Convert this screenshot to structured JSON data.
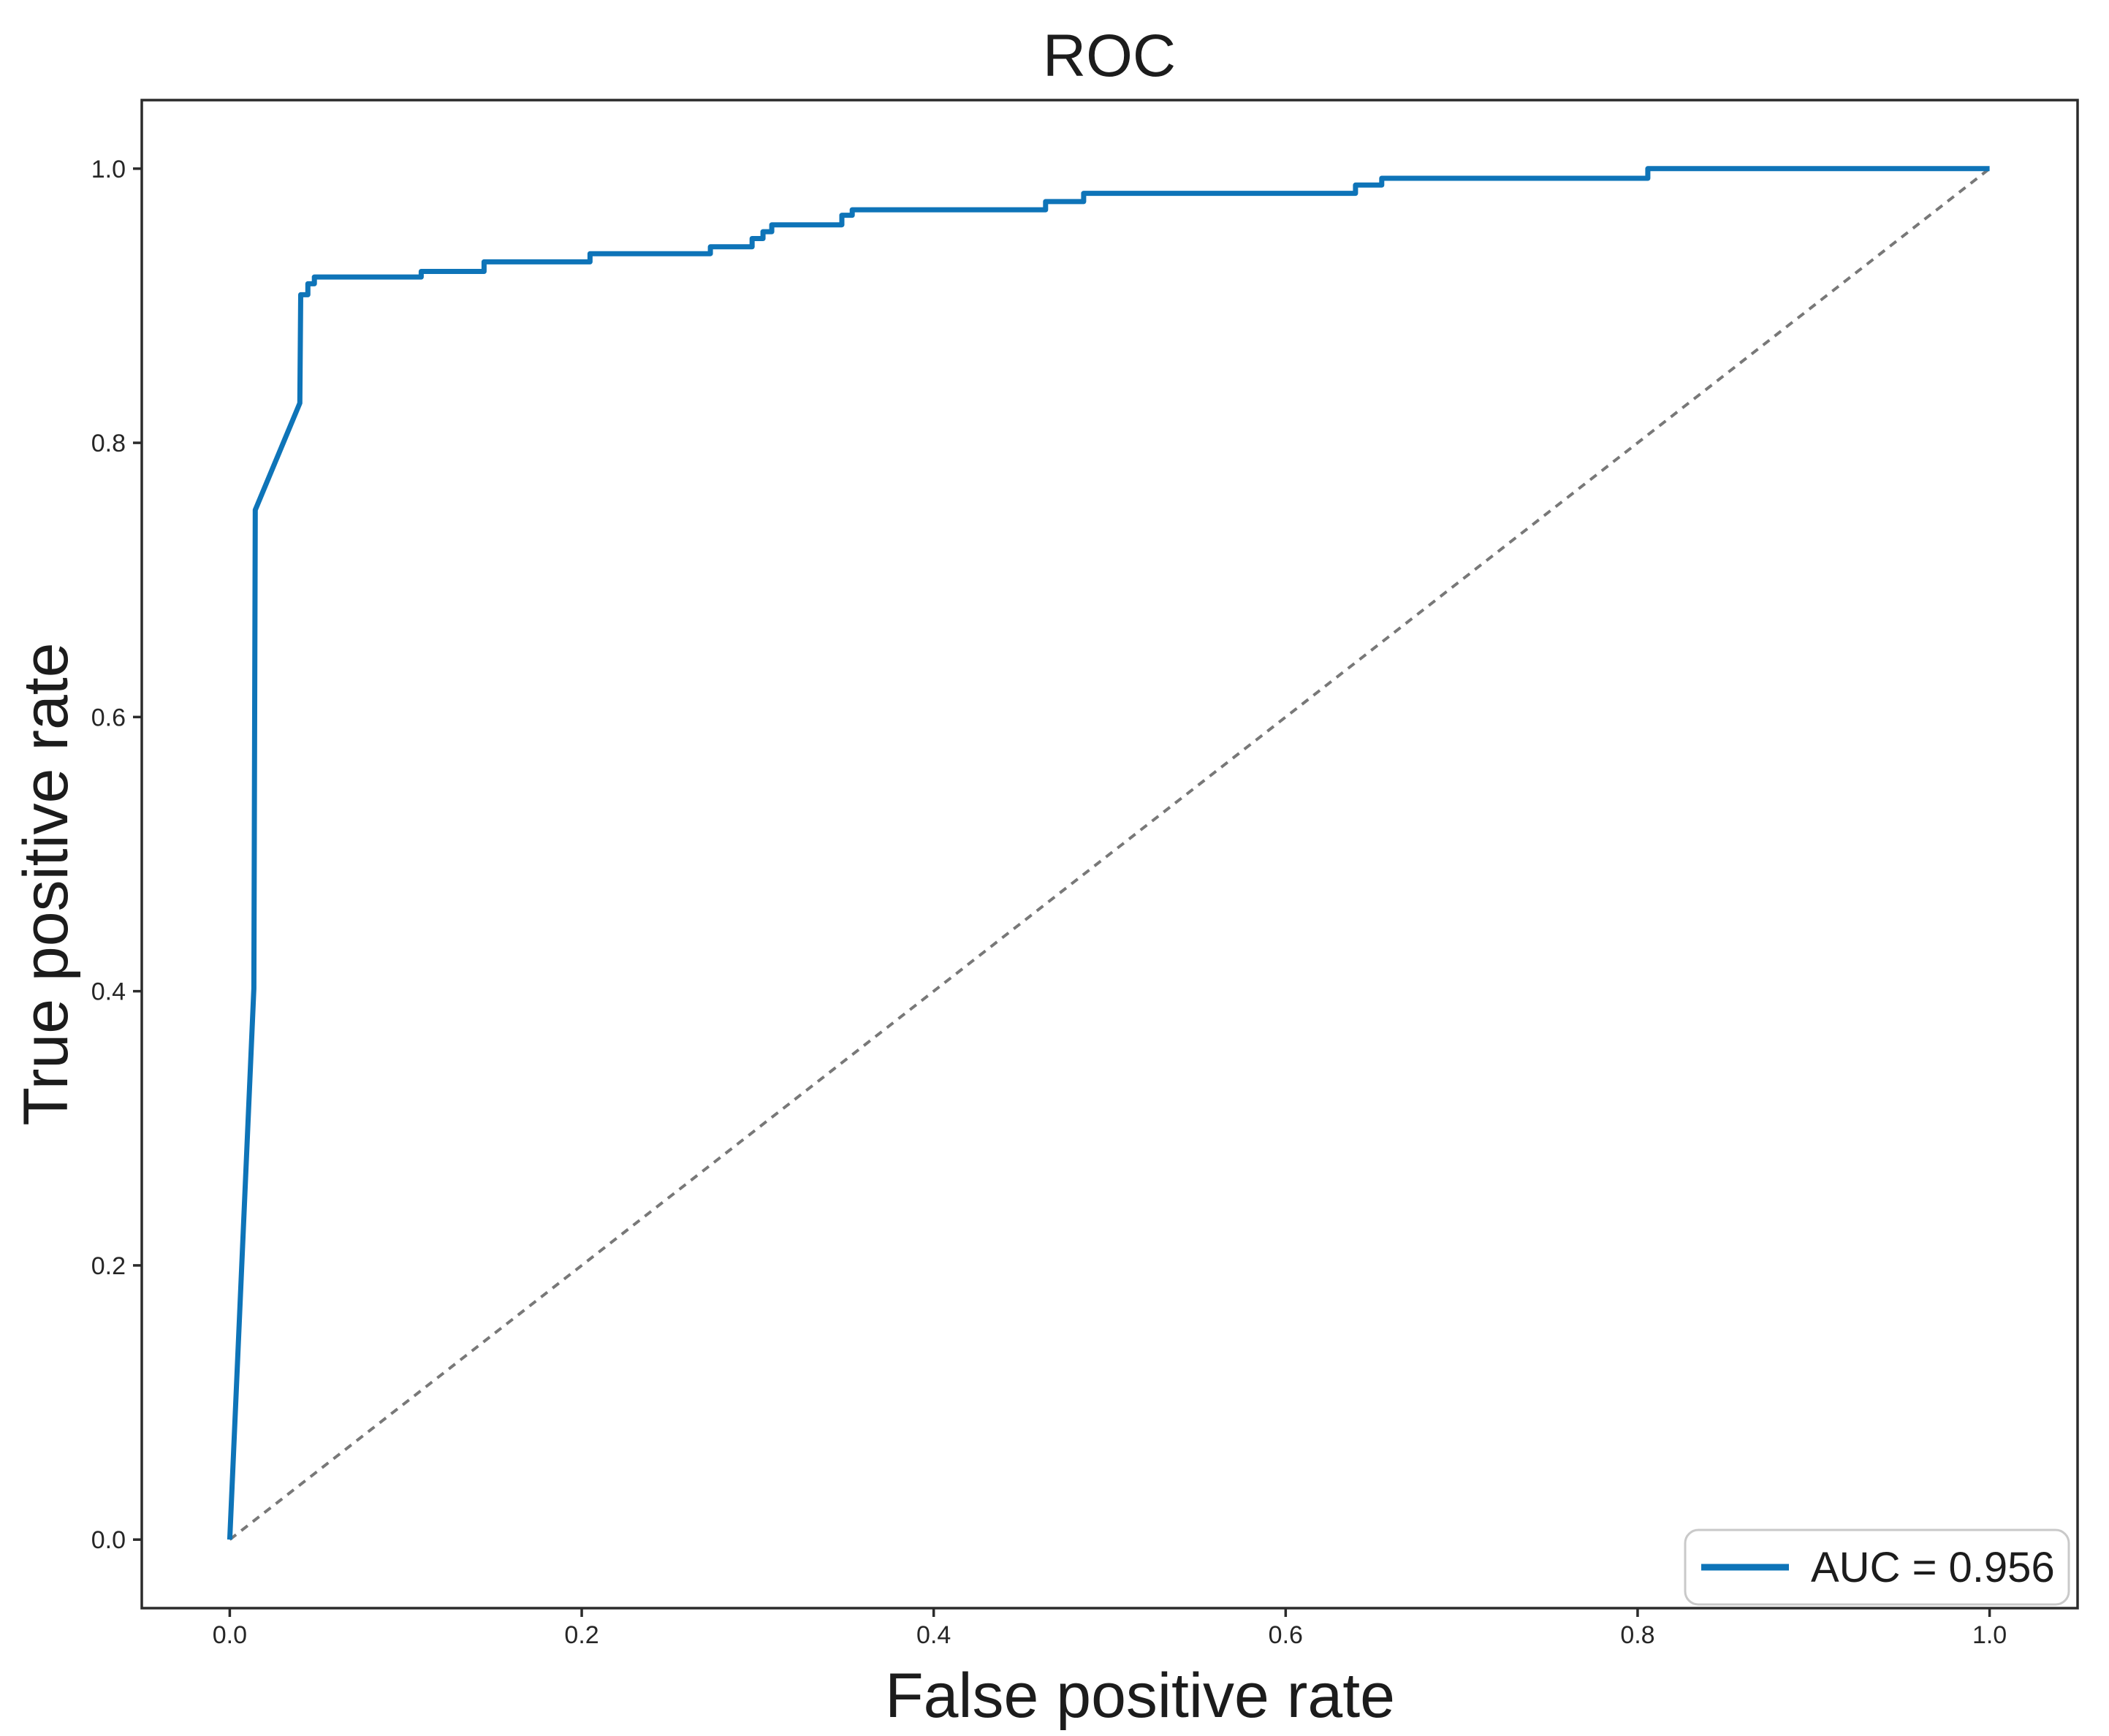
{
  "figure": {
    "title": "ROC",
    "xlabel": "False positive rate",
    "ylabel": "True positive rate",
    "legend_label": "AUC = 0.956"
  },
  "colors": {
    "roc_line": "#0e74b8",
    "diagonal_line": "#787878",
    "axis": "#2b2b2b",
    "tick_text": "#262626",
    "legend_border": "#c9c9c9",
    "background": "#ffffff"
  },
  "chart_data": {
    "type": "line",
    "title": "ROC",
    "xlabel": "False positive rate",
    "ylabel": "True positive rate",
    "xlim": [
      -0.05,
      1.05
    ],
    "ylim": [
      -0.05,
      1.05
    ],
    "xticks": [
      "0.0",
      "0.2",
      "0.4",
      "0.6",
      "0.8",
      "1.0"
    ],
    "yticks": [
      "0.0",
      "0.2",
      "0.4",
      "0.6",
      "0.8",
      "1.0"
    ],
    "grid": false,
    "auc": 0.956,
    "legend": {
      "label": "AUC = 0.956",
      "position": "lower right"
    },
    "series": [
      {
        "name": "roc-curve",
        "legend_label": "AUC = 0.956",
        "style": "solid",
        "points": [
          [
            0.0,
            0.0
          ],
          [
            0.0137,
            0.402
          ],
          [
            0.0145,
            0.751
          ],
          [
            0.0398,
            0.829
          ],
          [
            0.0403,
            0.908
          ],
          [
            0.0444,
            0.908
          ],
          [
            0.0444,
            0.916
          ],
          [
            0.0481,
            0.916
          ],
          [
            0.0481,
            0.921
          ],
          [
            0.1088,
            0.921
          ],
          [
            0.1088,
            0.925
          ],
          [
            0.1445,
            0.925
          ],
          [
            0.1445,
            0.932
          ],
          [
            0.2047,
            0.932
          ],
          [
            0.2047,
            0.938
          ],
          [
            0.2731,
            0.938
          ],
          [
            0.2731,
            0.943
          ],
          [
            0.2968,
            0.943
          ],
          [
            0.2968,
            0.949
          ],
          [
            0.303,
            0.949
          ],
          [
            0.303,
            0.954
          ],
          [
            0.308,
            0.954
          ],
          [
            0.308,
            0.959
          ],
          [
            0.3478,
            0.959
          ],
          [
            0.3478,
            0.966
          ],
          [
            0.3537,
            0.966
          ],
          [
            0.3537,
            0.97
          ],
          [
            0.4636,
            0.97
          ],
          [
            0.4636,
            0.976
          ],
          [
            0.4852,
            0.976
          ],
          [
            0.4852,
            0.982
          ],
          [
            0.6397,
            0.982
          ],
          [
            0.6397,
            0.988
          ],
          [
            0.6546,
            0.988
          ],
          [
            0.6546,
            0.993
          ],
          [
            0.8058,
            0.993
          ],
          [
            0.8058,
            1.0
          ],
          [
            1.0,
            1.0
          ]
        ]
      },
      {
        "name": "chance-diagonal",
        "style": "dashed",
        "points": [
          [
            0.0,
            0.0
          ],
          [
            1.0,
            1.0
          ]
        ]
      }
    ]
  }
}
